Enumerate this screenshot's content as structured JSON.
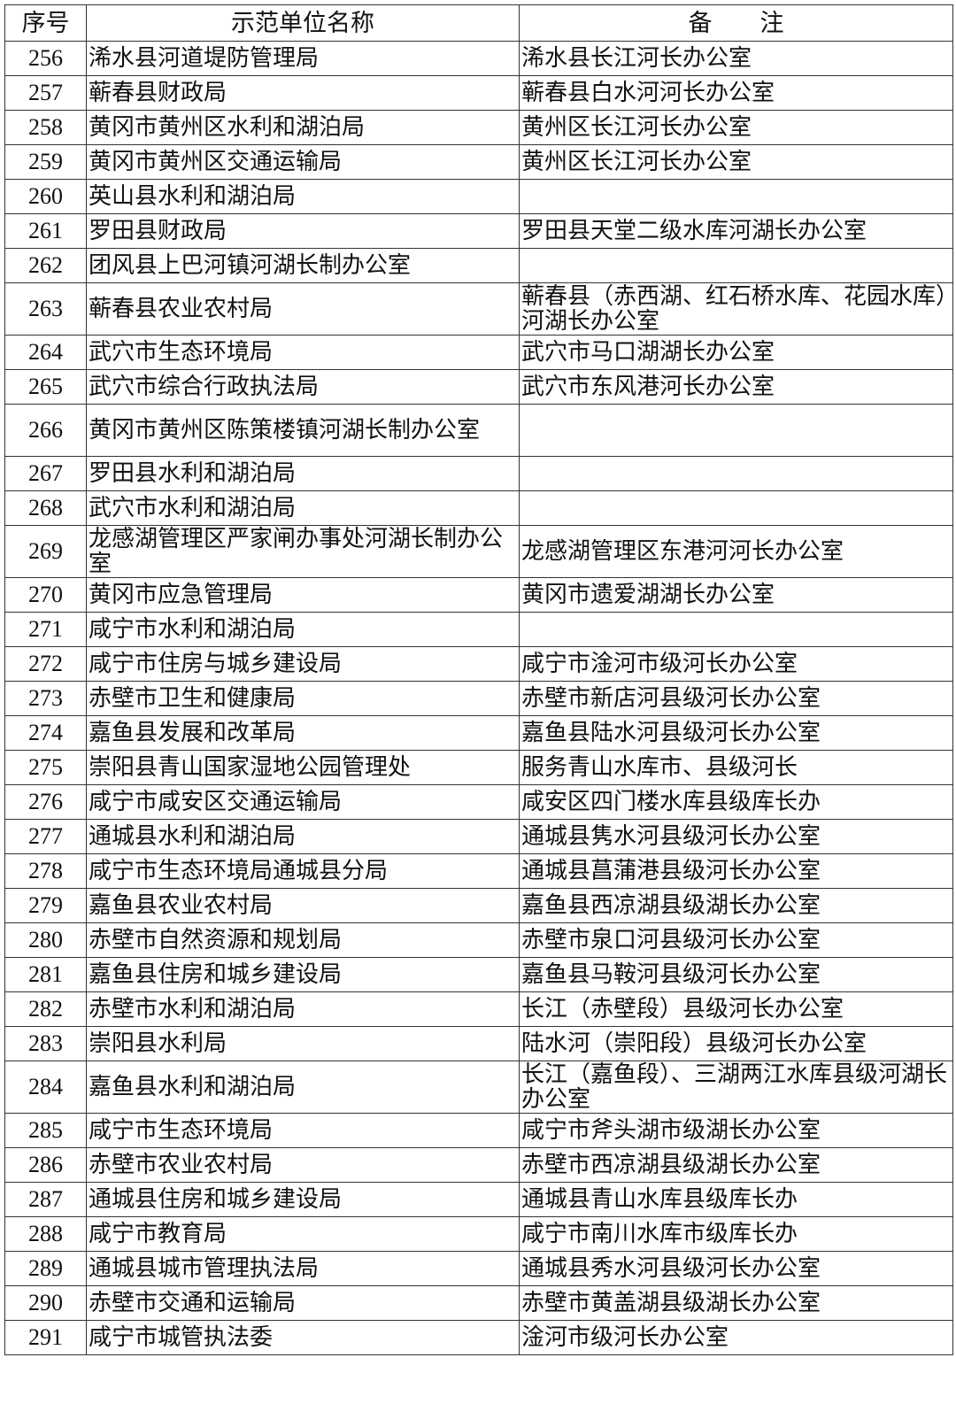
{
  "header": {
    "index": "序号",
    "name": "示范单位名称",
    "remark": "备　　注"
  },
  "rows": [
    {
      "no": "256",
      "name": "浠水县河道堤防管理局",
      "remark": "浠水县长江河长办公室"
    },
    {
      "no": "257",
      "name": "蕲春县财政局",
      "remark": "蕲春县白水河河长办公室"
    },
    {
      "no": "258",
      "name": "黄冈市黄州区水利和湖泊局",
      "remark": "黄州区长江河长办公室"
    },
    {
      "no": "259",
      "name": "黄冈市黄州区交通运输局",
      "remark": "黄州区长江河长办公室"
    },
    {
      "no": "260",
      "name": "英山县水利和湖泊局",
      "remark": ""
    },
    {
      "no": "261",
      "name": "罗田县财政局",
      "remark": "罗田县天堂二级水库河湖长办公室"
    },
    {
      "no": "262",
      "name": "团风县上巴河镇河湖长制办公室",
      "remark": ""
    },
    {
      "no": "263",
      "name": "蕲春县农业农村局",
      "remark": "蕲春县（赤西湖、红石桥水库、花园水库）河湖长办公室"
    },
    {
      "no": "264",
      "name": "武穴市生态环境局",
      "remark": "武穴市马口湖湖长办公室"
    },
    {
      "no": "265",
      "name": "武穴市综合行政执法局",
      "remark": "武穴市东风港河长办公室"
    },
    {
      "no": "266",
      "name": "黄冈市黄州区陈策楼镇河湖长制办公室",
      "remark": ""
    },
    {
      "no": "267",
      "name": "罗田县水利和湖泊局",
      "remark": ""
    },
    {
      "no": "268",
      "name": "武穴市水利和湖泊局",
      "remark": ""
    },
    {
      "no": "269",
      "name": "龙感湖管理区严家闸办事处河湖长制办公室",
      "remark": "龙感湖管理区东港河河长办公室"
    },
    {
      "no": "270",
      "name": "黄冈市应急管理局",
      "remark": "黄冈市遗爱湖湖长办公室"
    },
    {
      "no": "271",
      "name": "咸宁市水利和湖泊局",
      "remark": ""
    },
    {
      "no": "272",
      "name": "咸宁市住房与城乡建设局",
      "remark": "咸宁市淦河市级河长办公室"
    },
    {
      "no": "273",
      "name": "赤壁市卫生和健康局",
      "remark": "赤壁市新店河县级河长办公室"
    },
    {
      "no": "274",
      "name": "嘉鱼县发展和改革局",
      "remark": "嘉鱼县陆水河县级河长办公室"
    },
    {
      "no": "275",
      "name": "崇阳县青山国家湿地公园管理处",
      "remark": "服务青山水库市、县级河长"
    },
    {
      "no": "276",
      "name": "咸宁市咸安区交通运输局",
      "remark": "咸安区四门楼水库县级库长办"
    },
    {
      "no": "277",
      "name": "通城县水利和湖泊局",
      "remark": "通城县隽水河县级河长办公室"
    },
    {
      "no": "278",
      "name": "咸宁市生态环境局通城县分局",
      "remark": "通城县菖蒲港县级河长办公室"
    },
    {
      "no": "279",
      "name": "嘉鱼县农业农村局",
      "remark": "嘉鱼县西凉湖县级湖长办公室"
    },
    {
      "no": "280",
      "name": "赤壁市自然资源和规划局",
      "remark": "赤壁市泉口河县级河长办公室"
    },
    {
      "no": "281",
      "name": "嘉鱼县住房和城乡建设局",
      "remark": "嘉鱼县马鞍河县级河长办公室"
    },
    {
      "no": "282",
      "name": "赤壁市水利和湖泊局",
      "remark": "长江（赤壁段）县级河长办公室"
    },
    {
      "no": "283",
      "name": "崇阳县水利局",
      "remark": "陆水河（崇阳段）县级河长办公室"
    },
    {
      "no": "284",
      "name": "嘉鱼县水利和湖泊局",
      "remark": "长江（嘉鱼段）、三湖两江水库县级河湖长办公室"
    },
    {
      "no": "285",
      "name": "咸宁市生态环境局",
      "remark": "咸宁市斧头湖市级湖长办公室"
    },
    {
      "no": "286",
      "name": "赤壁市农业农村局",
      "remark": "赤壁市西凉湖县级湖长办公室"
    },
    {
      "no": "287",
      "name": "通城县住房和城乡建设局",
      "remark": "通城县青山水库县级库长办"
    },
    {
      "no": "288",
      "name": "咸宁市教育局",
      "remark": "咸宁市南川水库市级库长办"
    },
    {
      "no": "289",
      "name": "通城县城市管理执法局",
      "remark": "通城县秀水河县级河长办公室"
    },
    {
      "no": "290",
      "name": "赤壁市交通和运输局",
      "remark": "赤壁市黄盖湖县级湖长办公室"
    },
    {
      "no": "291",
      "name": "咸宁市城管执法委",
      "remark": "淦河市级河长办公室"
    }
  ]
}
